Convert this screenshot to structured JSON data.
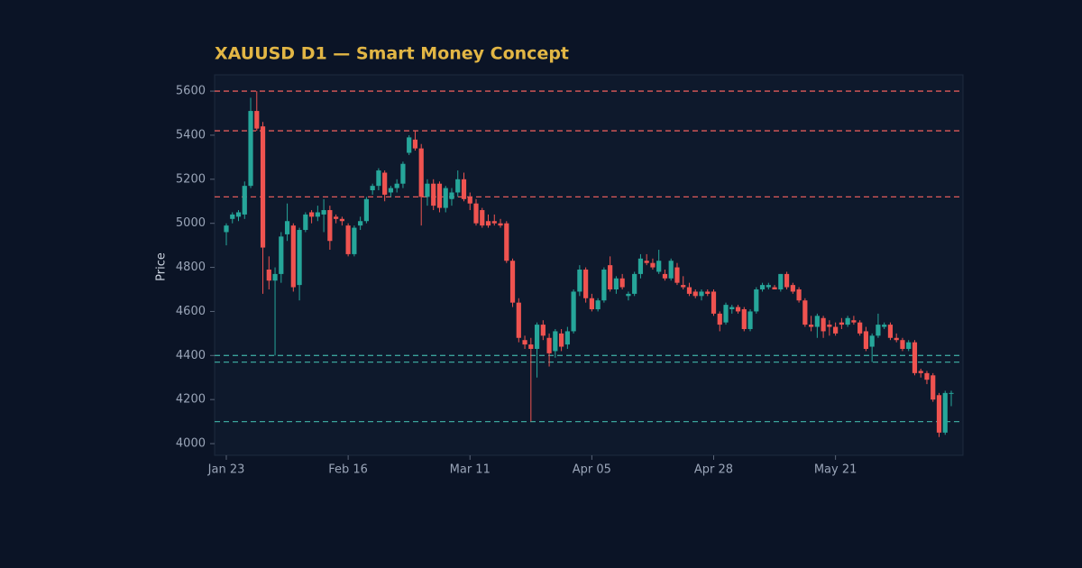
{
  "chart_data": {
    "type": "candlestick",
    "title": "XAUUSD D1 — Smart Money Concept",
    "y_label": "Price",
    "up_color": "#26a69a",
    "down_color": "#ef5350",
    "categories": [
      "Jan 23",
      null,
      null,
      null,
      null,
      null,
      null,
      null,
      null,
      null,
      null,
      null,
      null,
      null,
      null,
      null,
      null,
      null,
      null,
      null,
      "Feb 16",
      null,
      null,
      null,
      null,
      null,
      null,
      null,
      null,
      null,
      null,
      null,
      null,
      null,
      null,
      null,
      null,
      null,
      null,
      null,
      "Mar 11",
      null,
      null,
      null,
      null,
      null,
      null,
      null,
      null,
      null,
      null,
      null,
      null,
      null,
      null,
      null,
      null,
      null,
      null,
      null,
      "Apr 05",
      null,
      null,
      null,
      null,
      null,
      null,
      null,
      null,
      null,
      null,
      null,
      null,
      null,
      null,
      null,
      null,
      null,
      null,
      null,
      "Apr 28",
      null,
      null,
      null,
      null,
      null,
      null,
      null,
      null,
      null,
      null,
      null,
      null,
      null,
      null,
      null,
      null,
      null,
      null,
      null,
      "May 21",
      null,
      null,
      null,
      null,
      null,
      null,
      null,
      null,
      null,
      null,
      null,
      null,
      null,
      null,
      null,
      null,
      null,
      null,
      null
    ],
    "open": [
      4960,
      5020,
      5030,
      5040,
      5170,
      5510,
      5440,
      4790,
      4740,
      4770,
      4950,
      4990,
      4720,
      4970,
      5050,
      5030,
      5040,
      5060,
      5030,
      5020,
      4990,
      4860,
      4990,
      5010,
      5150,
      5170,
      5230,
      5140,
      5160,
      5180,
      5320,
      5380,
      5340,
      5120,
      5180,
      5180,
      5070,
      5110,
      5140,
      5200,
      5120,
      5090,
      5060,
      5010,
      5010,
      5000,
      5000,
      4830,
      4640,
      4470,
      4450,
      4430,
      4540,
      4480,
      4420,
      4500,
      4450,
      4510,
      4690,
      4790,
      4660,
      4610,
      4650,
      4810,
      4700,
      4750,
      4670,
      4680,
      4770,
      4830,
      4820,
      4780,
      4770,
      4750,
      4800,
      4720,
      4710,
      4690,
      4670,
      4690,
      4690,
      4590,
      4550,
      4610,
      4620,
      4610,
      4520,
      4600,
      4700,
      4710,
      4710,
      4700,
      4770,
      4720,
      4700,
      4650,
      4540,
      4530,
      4570,
      4540,
      4530,
      4550,
      4540,
      4560,
      4550,
      4510,
      4440,
      4490,
      4530,
      4540,
      4480,
      4470,
      4430,
      4460,
      4330,
      4320,
      4310,
      4220,
      4050,
      4230
    ],
    "high": [
      5000,
      5050,
      5060,
      5190,
      5570,
      5600,
      5460,
      4850,
      4800,
      4960,
      5090,
      5000,
      4980,
      5050,
      5060,
      5080,
      5110,
      5080,
      5040,
      5030,
      5000,
      4990,
      5030,
      5120,
      5180,
      5250,
      5240,
      5170,
      5200,
      5280,
      5400,
      5420,
      5360,
      5200,
      5200,
      5190,
      5170,
      5160,
      5240,
      5230,
      5140,
      5110,
      5070,
      5040,
      5040,
      5020,
      5010,
      4840,
      4660,
      4490,
      4480,
      4550,
      4560,
      4500,
      4520,
      4520,
      4530,
      4700,
      4810,
      4800,
      4680,
      4660,
      4800,
      4850,
      4760,
      4770,
      4690,
      4780,
      4860,
      4860,
      4840,
      4880,
      4790,
      4840,
      4820,
      4760,
      4730,
      4700,
      4700,
      4700,
      4700,
      4600,
      4640,
      4630,
      4630,
      4620,
      4610,
      4710,
      4730,
      4730,
      4720,
      4770,
      4780,
      4730,
      4710,
      4660,
      4580,
      4590,
      4580,
      4560,
      4550,
      4570,
      4580,
      4580,
      4560,
      4530,
      4500,
      4590,
      4550,
      4550,
      4500,
      4480,
      4470,
      4470,
      4340,
      4330,
      4320,
      4230,
      4240,
      4240
    ],
    "low": [
      4900,
      5000,
      5010,
      5020,
      5160,
      5420,
      4680,
      4700,
      4400,
      4730,
      4920,
      4690,
      4650,
      4960,
      5000,
      5010,
      4960,
      4880,
      5000,
      4990,
      4850,
      4850,
      4970,
      5000,
      5130,
      5150,
      5100,
      5120,
      5140,
      5160,
      5310,
      5330,
      4990,
      5080,
      5060,
      5050,
      5050,
      5080,
      5120,
      5100,
      5060,
      4990,
      4980,
      4980,
      4990,
      4980,
      4820,
      4620,
      4460,
      4430,
      4100,
      4300,
      4470,
      4350,
      4390,
      4420,
      4430,
      4500,
      4670,
      4640,
      4600,
      4600,
      4640,
      4690,
      4680,
      4700,
      4650,
      4670,
      4750,
      4810,
      4790,
      4770,
      4740,
      4740,
      4720,
      4700,
      4670,
      4660,
      4650,
      4670,
      4580,
      4510,
      4540,
      4590,
      4590,
      4510,
      4510,
      4590,
      4690,
      4700,
      4700,
      4690,
      4700,
      4680,
      4640,
      4530,
      4510,
      4480,
      4480,
      4490,
      4490,
      4520,
      4530,
      4540,
      4490,
      4420,
      4370,
      4480,
      4520,
      4470,
      4460,
      4420,
      4420,
      4310,
      4300,
      4270,
      4190,
      4030,
      4040,
      4170
    ],
    "close": [
      4990,
      5040,
      5050,
      5170,
      5510,
      5430,
      4890,
      4740,
      4770,
      4940,
      5010,
      4710,
      4970,
      5040,
      5030,
      5050,
      5060,
      4920,
      5020,
      5010,
      4860,
      4980,
      5010,
      5110,
      5170,
      5240,
      5130,
      5160,
      5180,
      5270,
      5390,
      5340,
      5120,
      5180,
      5080,
      5070,
      5160,
      5140,
      5200,
      5110,
      5090,
      5000,
      4990,
      4990,
      5000,
      4990,
      4830,
      4640,
      4480,
      4450,
      4430,
      4540,
      4490,
      4410,
      4510,
      4440,
      4510,
      4690,
      4790,
      4660,
      4610,
      4650,
      4790,
      4700,
      4750,
      4710,
      4680,
      4770,
      4840,
      4820,
      4800,
      4830,
      4750,
      4830,
      4730,
      4710,
      4680,
      4670,
      4690,
      4680,
      4590,
      4540,
      4630,
      4620,
      4600,
      4520,
      4600,
      4700,
      4720,
      4720,
      4700,
      4770,
      4710,
      4690,
      4650,
      4540,
      4530,
      4580,
      4510,
      4530,
      4500,
      4540,
      4570,
      4550,
      4500,
      4430,
      4490,
      4540,
      4540,
      4480,
      4470,
      4430,
      4460,
      4320,
      4320,
      4290,
      4200,
      4050,
      4230,
      4230
    ],
    "hlines": [
      {
        "value": 5600,
        "color": "#e05a5a"
      },
      {
        "value": 5420,
        "color": "#e05a5a"
      },
      {
        "value": 5120,
        "color": "#e05a5a"
      },
      {
        "value": 4400,
        "color": "#3aa39a"
      },
      {
        "value": 4370,
        "color": "#3aa39a"
      },
      {
        "value": 4100,
        "color": "#3aa39a"
      }
    ],
    "ylim": [
      3947,
      5674
    ],
    "yticks": [
      4000,
      4200,
      4400,
      4600,
      4800,
      5000,
      5200,
      5400,
      5600
    ]
  }
}
